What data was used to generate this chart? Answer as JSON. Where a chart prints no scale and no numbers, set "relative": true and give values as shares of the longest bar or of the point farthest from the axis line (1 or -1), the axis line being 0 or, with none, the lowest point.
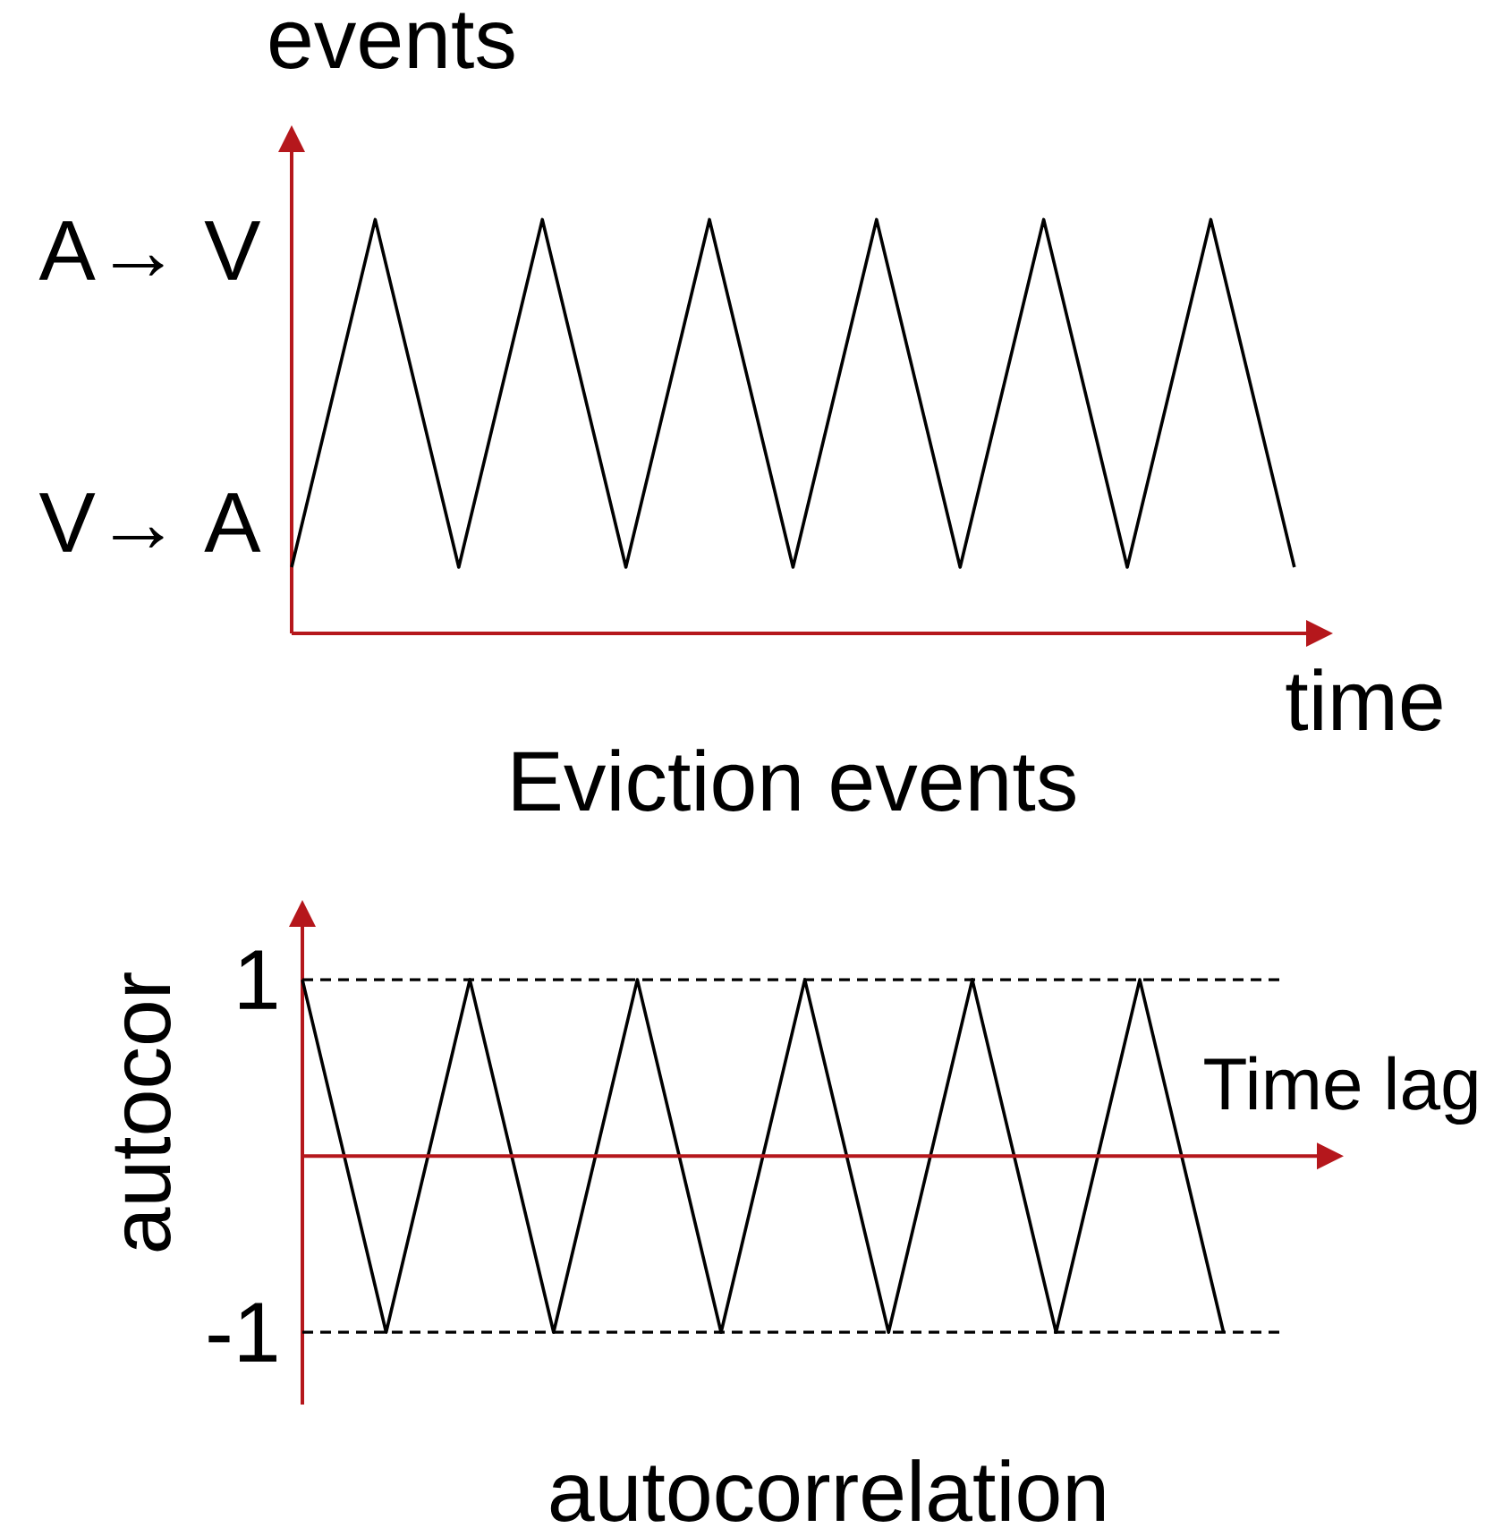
{
  "chart_data": [
    {
      "type": "line",
      "title": "Eviction events",
      "xlabel": "time",
      "ylabel": "events",
      "categories": [
        null,
        null,
        null,
        null,
        null,
        null,
        null,
        null,
        null,
        null,
        null,
        null,
        null
      ],
      "relative": true,
      "series": [
        {
          "color": "#000000",
          "values": [
            0.16,
            1,
            0.16,
            1,
            0.16,
            1,
            0.16,
            1,
            0.16,
            1,
            0.16,
            1,
            0.16
          ]
        }
      ],
      "annotations": [
        "A→ V",
        "V→ A"
      ],
      "tick_labels": false,
      "marker": "none",
      "line_style": "solid"
    },
    {
      "type": "line",
      "title": "autocorrelation",
      "xlabel": "Time lag",
      "ylabel": "autocor",
      "categories": [
        null,
        null,
        null,
        null,
        null,
        null,
        null,
        null,
        null,
        null,
        null,
        null
      ],
      "series": [
        {
          "color": "#000000",
          "values": [
            1,
            -1,
            1,
            -1,
            1,
            -1,
            1,
            -1,
            1,
            -1,
            1,
            -1
          ]
        }
      ],
      "ylim": [
        -1.41,
        1.3
      ],
      "yticks": [
        -1,
        1
      ],
      "ref_lines": [
        {
          "axis": "y",
          "value": 1,
          "color": "#000000",
          "line_style": "dashed"
        },
        {
          "axis": "y",
          "value": 0,
          "color": "#b5171c",
          "line_style": "solid"
        },
        {
          "axis": "y",
          "value": -1,
          "color": "#000000",
          "line_style": "dashed"
        }
      ],
      "tick_labels": "y",
      "marker": "none",
      "line_style": "solid"
    }
  ]
}
